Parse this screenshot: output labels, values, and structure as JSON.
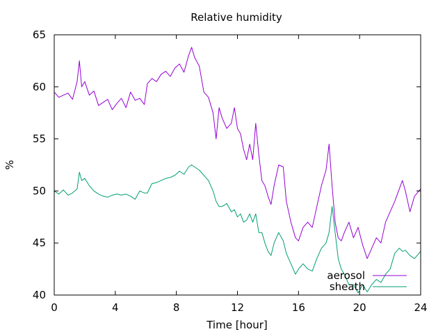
{
  "chart_data": {
    "type": "line",
    "title": "Relative humidity",
    "xlabel": "Time [hour]",
    "ylabel": "%",
    "xlim": [
      0,
      24
    ],
    "ylim": [
      40,
      65
    ],
    "x_ticks": [
      0,
      4,
      8,
      12,
      16,
      20,
      24
    ],
    "y_ticks": [
      40,
      45,
      50,
      55,
      60,
      65
    ],
    "grid": false,
    "legend_position": "bottom-right",
    "series": [
      {
        "name": "aerosol",
        "color": "#9400d3",
        "x": [
          0,
          0.3,
          0.6,
          0.9,
          1.2,
          1.5,
          1.65,
          1.8,
          2.0,
          2.3,
          2.6,
          2.9,
          3.2,
          3.5,
          3.8,
          4.1,
          4.4,
          4.7,
          5.0,
          5.3,
          5.6,
          5.9,
          6.1,
          6.4,
          6.7,
          7.0,
          7.3,
          7.6,
          7.9,
          8.2,
          8.5,
          8.8,
          9.0,
          9.2,
          9.5,
          9.8,
          10.1,
          10.4,
          10.6,
          10.8,
          11.0,
          11.3,
          11.6,
          11.8,
          12.0,
          12.2,
          12.4,
          12.6,
          12.8,
          13.0,
          13.2,
          13.4,
          13.6,
          13.8,
          14.0,
          14.2,
          14.4,
          14.7,
          15.0,
          15.2,
          15.5,
          15.8,
          16.0,
          16.3,
          16.6,
          16.9,
          17.2,
          17.5,
          17.8,
          18.0,
          18.2,
          18.4,
          18.6,
          18.8,
          19.0,
          19.3,
          19.6,
          19.9,
          20.2,
          20.5,
          20.8,
          21.1,
          21.4,
          21.7,
          22.0,
          22.3,
          22.6,
          22.8,
          23.0,
          23.3,
          23.6,
          24.0
        ],
        "y": [
          59.5,
          59.0,
          59.2,
          59.4,
          58.8,
          60.5,
          62.5,
          60.0,
          60.5,
          59.2,
          59.6,
          58.2,
          58.5,
          58.8,
          57.8,
          58.4,
          58.9,
          58.0,
          59.5,
          58.7,
          58.9,
          58.3,
          60.3,
          60.8,
          60.5,
          61.2,
          61.5,
          61.0,
          61.8,
          62.2,
          61.4,
          63.0,
          63.8,
          62.8,
          62.0,
          59.5,
          59.0,
          57.5,
          55.0,
          58.0,
          57.0,
          56.0,
          56.5,
          58.0,
          56.0,
          55.5,
          54.0,
          53.0,
          54.5,
          53.0,
          56.5,
          53.5,
          51.0,
          50.5,
          49.5,
          48.7,
          50.5,
          52.5,
          52.3,
          49.0,
          47.0,
          45.5,
          45.2,
          46.5,
          47.0,
          46.5,
          48.5,
          50.5,
          52.0,
          54.5,
          50.5,
          47.0,
          45.5,
          45.2,
          46.0,
          47.0,
          45.5,
          46.5,
          44.8,
          43.5,
          44.5,
          45.5,
          45.0,
          47.0,
          48.0,
          49.0,
          50.2,
          51.0,
          50.0,
          48.0,
          49.5,
          50.2
        ]
      },
      {
        "name": "sheath",
        "color": "#009e73",
        "x": [
          0,
          0.3,
          0.6,
          0.9,
          1.2,
          1.5,
          1.65,
          1.8,
          2.0,
          2.3,
          2.6,
          2.9,
          3.2,
          3.5,
          3.8,
          4.1,
          4.4,
          4.7,
          5.0,
          5.3,
          5.6,
          5.9,
          6.1,
          6.4,
          6.7,
          7.0,
          7.3,
          7.6,
          7.9,
          8.2,
          8.5,
          8.8,
          9.0,
          9.2,
          9.5,
          9.8,
          10.1,
          10.4,
          10.6,
          10.8,
          11.0,
          11.3,
          11.6,
          11.8,
          12.0,
          12.2,
          12.4,
          12.6,
          12.8,
          13.0,
          13.2,
          13.4,
          13.6,
          13.8,
          14.0,
          14.2,
          14.4,
          14.7,
          15.0,
          15.2,
          15.5,
          15.8,
          16.0,
          16.3,
          16.6,
          16.9,
          17.2,
          17.5,
          17.8,
          18.0,
          18.2,
          18.4,
          18.6,
          18.8,
          19.0,
          19.3,
          19.6,
          19.9,
          20.2,
          20.5,
          20.8,
          21.1,
          21.4,
          21.7,
          22.0,
          22.3,
          22.6,
          22.8,
          23.0,
          23.3,
          23.6,
          24.0
        ],
        "y": [
          50.0,
          49.7,
          50.1,
          49.6,
          49.8,
          50.2,
          51.8,
          51.0,
          51.2,
          50.5,
          50.0,
          49.7,
          49.5,
          49.4,
          49.6,
          49.7,
          49.6,
          49.7,
          49.5,
          49.2,
          50.0,
          49.8,
          49.8,
          50.7,
          50.8,
          51.0,
          51.2,
          51.3,
          51.5,
          51.9,
          51.6,
          52.3,
          52.5,
          52.3,
          52.0,
          51.5,
          51.0,
          50.0,
          49.0,
          48.5,
          48.5,
          48.8,
          48.0,
          48.2,
          47.5,
          47.8,
          47.0,
          47.2,
          47.8,
          47.0,
          47.8,
          46.0,
          46.0,
          45.0,
          44.2,
          43.8,
          45.0,
          46.0,
          45.2,
          44.0,
          43.0,
          42.0,
          42.5,
          43.0,
          42.5,
          42.3,
          43.5,
          44.5,
          45.0,
          46.0,
          48.5,
          46.0,
          43.5,
          42.5,
          42.0,
          41.0,
          41.0,
          40.2,
          41.0,
          40.3,
          41.0,
          41.5,
          41.2,
          42.0,
          42.5,
          44.0,
          44.5,
          44.2,
          44.3,
          43.8,
          43.5,
          44.2
        ]
      }
    ]
  }
}
